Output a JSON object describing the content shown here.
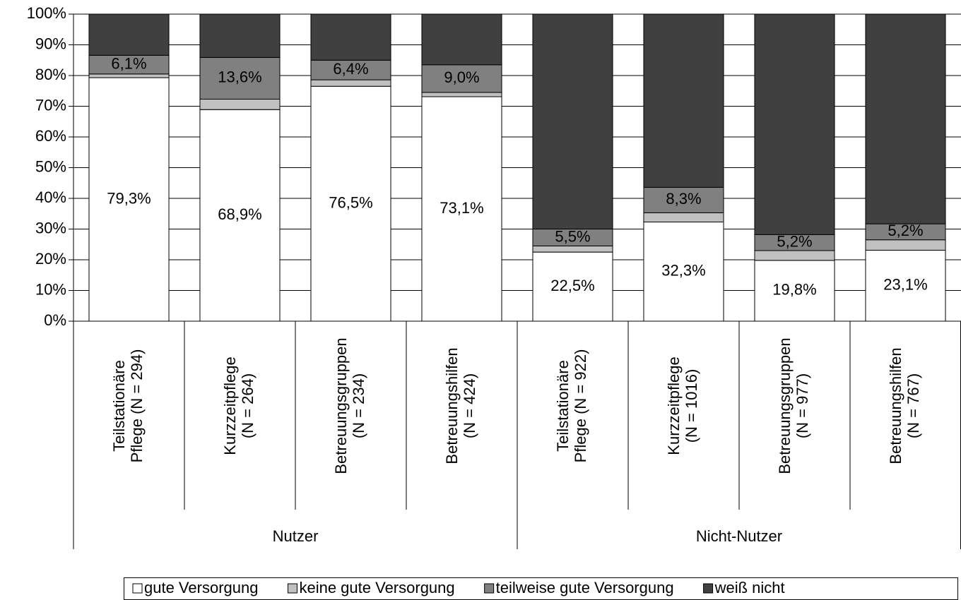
{
  "chart_data": {
    "type": "stacked_bar",
    "categories": [
      [
        "Teilstationäre",
        "Pflege (N = 294)"
      ],
      [
        "Kurzzeitpflege",
        "(N = 264)"
      ],
      [
        "Betreuungsgruppen",
        "(N = 234)"
      ],
      [
        "Betreuungshilfen",
        "(N = 424)"
      ],
      [
        "Teilstationäre",
        "Pflege (N = 922)"
      ],
      [
        "Kurzzeitpflege",
        "(N = 1016)"
      ],
      [
        "Betreuungsgruppen",
        "(N = 977)"
      ],
      [
        "Betreuungshilfen",
        "(N = 767)"
      ]
    ],
    "groups": [
      "Nutzer",
      "Nicht-Nutzer"
    ],
    "series": [
      {
        "name": "gute Versorgung",
        "color": "#ffffff",
        "values": [
          79.3,
          68.9,
          76.5,
          73.1,
          22.5,
          32.3,
          19.8,
          23.1
        ],
        "value_labels": [
          "79,3%",
          "68,9%",
          "76,5%",
          "73,1%",
          "22,5%",
          "32,3%",
          "19,8%",
          "23,1%"
        ]
      },
      {
        "name": "keine gute Versorgung",
        "color": "#c0c0c0",
        "values": [
          1.2,
          3.4,
          2.1,
          1.4,
          2.0,
          3.0,
          3.2,
          3.4
        ]
      },
      {
        "name": "teilweise gute Versorgung",
        "color": "#808080",
        "values": [
          6.1,
          13.6,
          6.4,
          9.0,
          5.5,
          8.3,
          5.2,
          5.2
        ],
        "value_labels": [
          "6,1%",
          "13,6%",
          "6,4%",
          "9,0%",
          "5,5%",
          "8,3%",
          "5,2%",
          "5,2%"
        ]
      },
      {
        "name": "weiß nicht",
        "color": "#404040",
        "values": [
          13.4,
          14.1,
          15.0,
          16.5,
          70.0,
          56.4,
          71.8,
          68.3
        ]
      }
    ],
    "ylim": [
      0,
      100
    ],
    "yticks": [
      {
        "value": 0,
        "label": "0%"
      },
      {
        "value": 10,
        "label": "10%"
      },
      {
        "value": 20,
        "label": "20%"
      },
      {
        "value": 30,
        "label": "30%"
      },
      {
        "value": 40,
        "label": "40%"
      },
      {
        "value": 50,
        "label": "50%"
      },
      {
        "value": 60,
        "label": "60%"
      },
      {
        "value": 70,
        "label": "70%"
      },
      {
        "value": 80,
        "label": "80%"
      },
      {
        "value": 90,
        "label": "90%"
      },
      {
        "value": 100,
        "label": "100%"
      }
    ],
    "grid": true
  }
}
